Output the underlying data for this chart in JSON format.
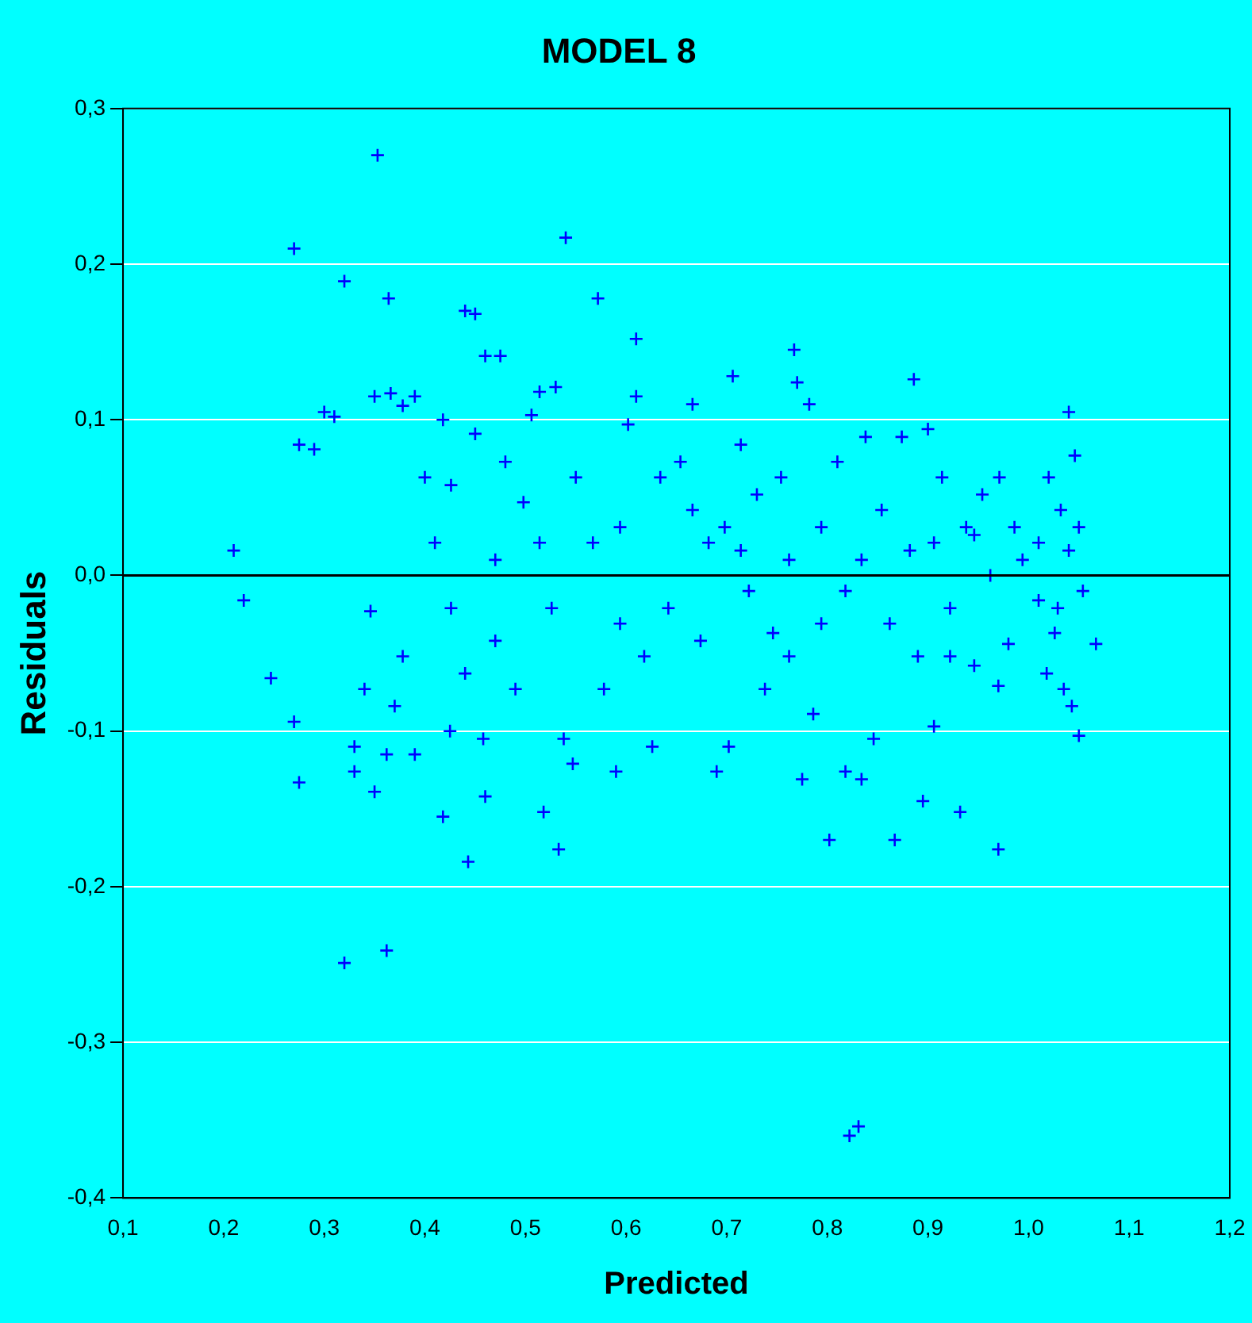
{
  "chart_data": {
    "type": "scatter",
    "title": "MODEL 8",
    "xlabel": "Predicted",
    "ylabel": "Residuals",
    "xlim": [
      0.1,
      1.2
    ],
    "ylim": [
      -0.4,
      0.3
    ],
    "xticks": [
      {
        "value": 0.1,
        "label": "0,1"
      },
      {
        "value": 0.2,
        "label": "0,2"
      },
      {
        "value": 0.3,
        "label": "0,3"
      },
      {
        "value": 0.4,
        "label": "0,4"
      },
      {
        "value": 0.5,
        "label": "0,5"
      },
      {
        "value": 0.6,
        "label": "0,6"
      },
      {
        "value": 0.7,
        "label": "0,7"
      },
      {
        "value": 0.8,
        "label": "0,8"
      },
      {
        "value": 0.9,
        "label": "0,9"
      },
      {
        "value": 1.0,
        "label": "1,0"
      },
      {
        "value": 1.1,
        "label": "1,1"
      },
      {
        "value": 1.2,
        "label": "1,2"
      }
    ],
    "yticks": [
      {
        "value": -0.4,
        "label": "-0,4"
      },
      {
        "value": -0.3,
        "label": "-0,3"
      },
      {
        "value": -0.2,
        "label": "-0,2"
      },
      {
        "value": -0.1,
        "label": "-0,1"
      },
      {
        "value": 0.0,
        "label": "0,0"
      },
      {
        "value": 0.1,
        "label": "0,1"
      },
      {
        "value": 0.2,
        "label": "0,2"
      },
      {
        "value": 0.3,
        "label": "0,3"
      }
    ],
    "grid": "y",
    "legend": false,
    "marker": "cross",
    "ref_lines": [
      {
        "axis": "y",
        "value": 0,
        "color": "#000000"
      }
    ],
    "series": [
      {
        "color": "#0000ff",
        "x": [
          0.21,
          0.22,
          0.27,
          0.247,
          0.27,
          0.275,
          0.275,
          0.29,
          0.3,
          0.31,
          0.32,
          0.32,
          0.33,
          0.33,
          0.34,
          0.35,
          0.353,
          0.364,
          0.362,
          0.35,
          0.366,
          0.378,
          0.39,
          0.346,
          0.378,
          0.37,
          0.362,
          0.39,
          0.4,
          0.41,
          0.418,
          0.426,
          0.425,
          0.418,
          0.426,
          0.44,
          0.45,
          0.45,
          0.44,
          0.443,
          0.458,
          0.46,
          0.46,
          0.475,
          0.47,
          0.48,
          0.47,
          0.49,
          0.498,
          0.506,
          0.514,
          0.518,
          0.53,
          0.533,
          0.54,
          0.538,
          0.547,
          0.526,
          0.55,
          0.572,
          0.567,
          0.578,
          0.59,
          0.594,
          0.602,
          0.61,
          0.61,
          0.618,
          0.626,
          0.634,
          0.642,
          0.654,
          0.666,
          0.674,
          0.682,
          0.69,
          0.702,
          0.706,
          0.714,
          0.722,
          0.73,
          0.738,
          0.746,
          0.754,
          0.762,
          0.767,
          0.77,
          0.775,
          0.782,
          0.786,
          0.794,
          0.802,
          0.81,
          0.818,
          0.818,
          0.822,
          0.831,
          0.834,
          0.838,
          0.846,
          0.854,
          0.862,
          0.867,
          0.874,
          0.882,
          0.886,
          0.895,
          0.9,
          0.906,
          0.914,
          0.922,
          0.932,
          0.938,
          0.946,
          0.954,
          0.962,
          0.97,
          0.97,
          0.971,
          0.98,
          0.994,
          1.01,
          1.018,
          1.02,
          1.029,
          1.032,
          1.035,
          1.04,
          1.043,
          1.046,
          1.05,
          1.054,
          1.067,
          1.05,
          1.04,
          0.666,
          0.714,
          0.794,
          0.834,
          0.906,
          0.946,
          0.922,
          0.986,
          1.026,
          1.01,
          0.89,
          0.762,
          0.698,
          0.594,
          0.514
        ],
        "values": [
          0.016,
          -0.016,
          0.21,
          -0.066,
          -0.094,
          -0.133,
          0.084,
          0.081,
          0.105,
          0.102,
          0.189,
          -0.249,
          -0.11,
          -0.126,
          -0.073,
          -0.139,
          0.27,
          0.178,
          -0.241,
          0.115,
          0.117,
          0.109,
          0.115,
          -0.023,
          -0.052,
          -0.084,
          -0.115,
          -0.115,
          0.063,
          0.021,
          0.1,
          0.058,
          -0.1,
          -0.155,
          -0.021,
          0.17,
          0.168,
          0.091,
          -0.063,
          -0.184,
          -0.105,
          -0.142,
          0.141,
          0.141,
          0.01,
          0.073,
          -0.042,
          -0.073,
          0.047,
          0.103,
          0.118,
          -0.152,
          0.121,
          -0.176,
          0.217,
          -0.105,
          -0.121,
          -0.021,
          0.063,
          0.178,
          0.021,
          -0.073,
          -0.126,
          0.031,
          0.097,
          0.152,
          0.115,
          -0.052,
          -0.11,
          0.063,
          -0.021,
          0.073,
          0.11,
          -0.042,
          0.021,
          -0.126,
          -0.11,
          0.128,
          0.084,
          -0.01,
          0.052,
          -0.073,
          -0.037,
          0.063,
          0.01,
          0.145,
          0.124,
          -0.131,
          0.11,
          -0.089,
          0.031,
          -0.17,
          0.073,
          -0.01,
          -0.126,
          -0.36,
          -0.354,
          -0.131,
          0.089,
          -0.105,
          0.042,
          -0.031,
          -0.17,
          0.089,
          0.016,
          0.126,
          -0.145,
          0.094,
          -0.097,
          0.063,
          -0.021,
          -0.152,
          0.031,
          -0.058,
          0.052,
          0.0,
          -0.176,
          -0.071,
          0.063,
          -0.044,
          0.01,
          0.021,
          -0.063,
          0.063,
          -0.021,
          0.042,
          -0.073,
          0.105,
          -0.084,
          0.077,
          -0.103,
          -0.01,
          -0.044,
          0.031,
          0.016,
          0.042,
          0.016,
          -0.031,
          0.01,
          0.021,
          0.026,
          -0.052,
          0.031,
          -0.037,
          -0.016,
          -0.052,
          -0.052,
          0.031,
          -0.031,
          0.021
        ]
      }
    ]
  }
}
